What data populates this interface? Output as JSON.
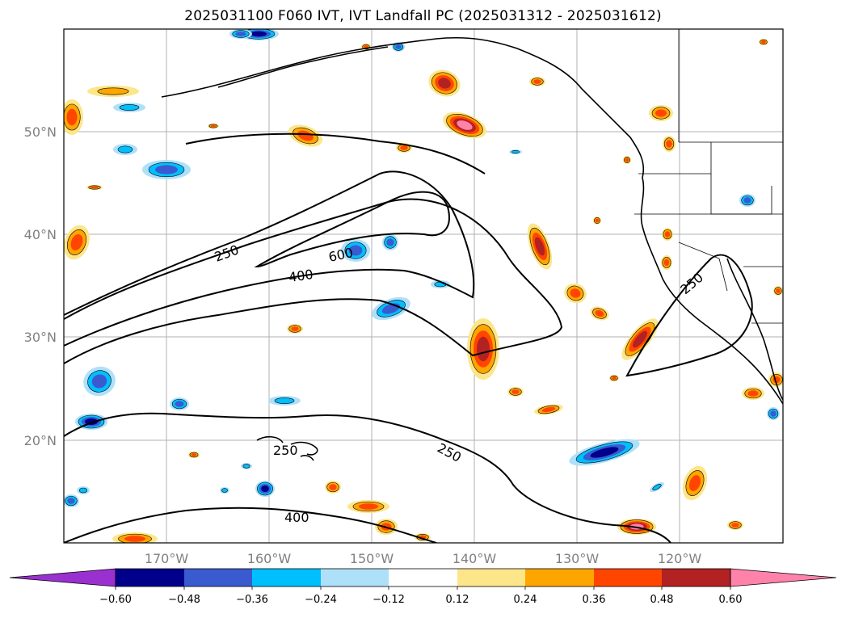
{
  "title": "2025031100 F060 IVT, IVT Landfall PC (2025031312 - 2025031612)",
  "longitude_labels": [
    "170°W",
    "160°W",
    "150°W",
    "140°W",
    "130°W",
    "120°W"
  ],
  "latitude_labels": [
    "50°N",
    "40°N",
    "30°N",
    "20°N"
  ],
  "contour_labels": [
    "250",
    "600",
    "400",
    "250",
    "250",
    "400",
    "250"
  ],
  "colorbar": {
    "ticks": [
      "−0.60",
      "−0.48",
      "−0.36",
      "−0.24",
      "−0.12",
      "0.12",
      "0.24",
      "0.36",
      "0.48",
      "0.60"
    ],
    "colors": [
      "#9b30d0",
      "#00008b",
      "#3a5bd0",
      "#00bfff",
      "#afe0fa",
      "#ffffff",
      "#fde68a",
      "#ffa500",
      "#ff4500",
      "#b22222",
      "#ff82ab"
    ]
  },
  "fill_colors": {
    "neg_light": "#afe0fa",
    "neg_mid": "#00bfff",
    "neg_strong": "#3a5bd0",
    "neg_deep": "#00008b",
    "pos_light": "#fde68a",
    "pos_mid": "#ffa500",
    "pos_strong": "#ff4500",
    "pos_deep": "#b22222",
    "pos_max": "#ff82ab"
  }
}
